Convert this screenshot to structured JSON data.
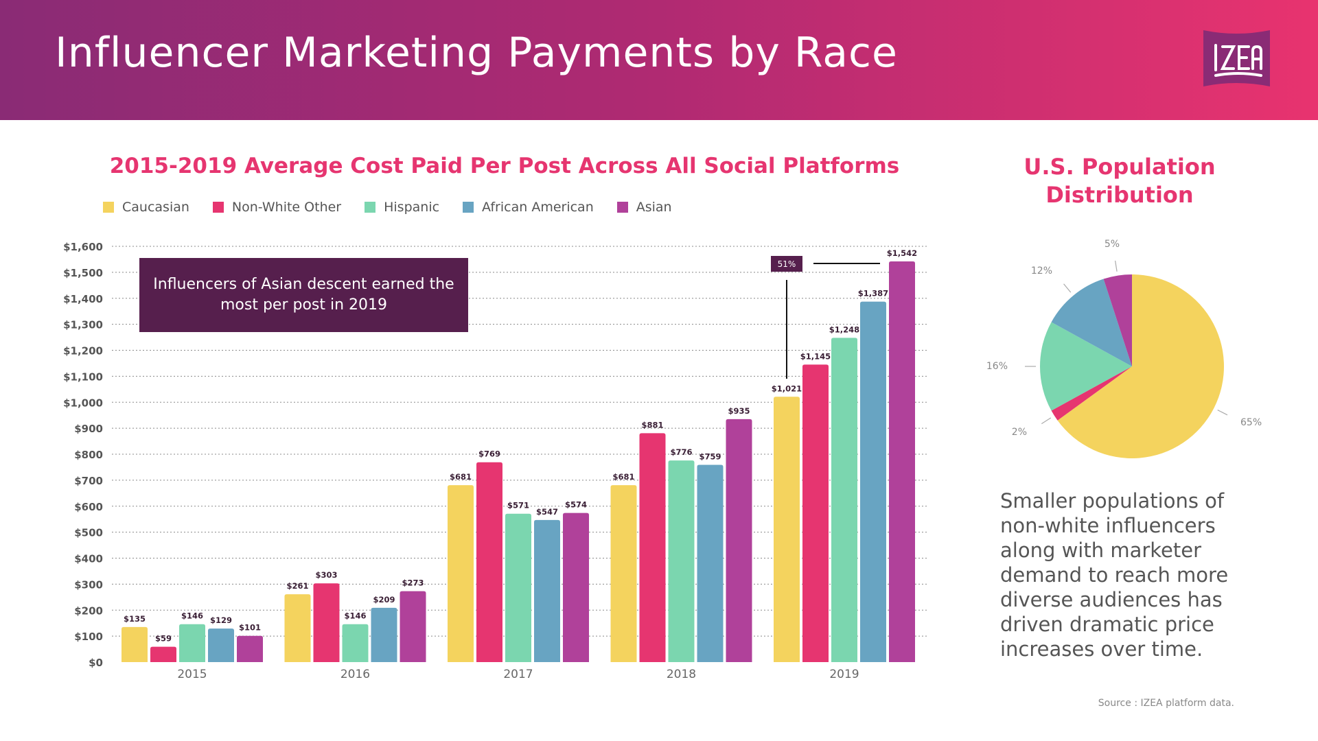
{
  "header": {
    "title": "Influencer Marketing Payments by Race",
    "logo_text": "IZEA"
  },
  "colors": {
    "Caucasian": "#f4d35e",
    "Non-White Other": "#e63570",
    "Hispanic": "#7bd6af",
    "African American": "#68a4c2",
    "Asian": "#b0419a",
    "accent": "#e63570",
    "note_bg": "#561f4d"
  },
  "chart_data": [
    {
      "type": "bar",
      "title": "2015-2019 Average Cost Paid Per Post Across All Social Platforms",
      "categories": [
        "2015",
        "2016",
        "2017",
        "2018",
        "2019"
      ],
      "series": [
        {
          "name": "Caucasian",
          "values": [
            135,
            261,
            681,
            681,
            1021
          ]
        },
        {
          "name": "Non-White Other",
          "values": [
            59,
            303,
            769,
            881,
            1145
          ]
        },
        {
          "name": "Hispanic",
          "values": [
            146,
            146,
            571,
            776,
            1248
          ]
        },
        {
          "name": "African American",
          "values": [
            129,
            209,
            547,
            759,
            1387
          ]
        },
        {
          "name": "Asian",
          "values": [
            101,
            273,
            574,
            935,
            1542
          ]
        }
      ],
      "ylim": [
        0,
        1600
      ],
      "yticks": [
        "$0",
        "$100",
        "$200",
        "$300",
        "$400",
        "$500",
        "$600",
        "$700",
        "$800",
        "$900",
        "$1,000",
        "$1,100",
        "$1,200",
        "$1,300",
        "$1,400",
        "$1,500",
        "$1,600"
      ],
      "data_labels": [
        [
          "$135",
          "$261",
          "$681",
          "$681",
          "$1,021"
        ],
        [
          "$59",
          "$303",
          "$769",
          "$881",
          "$1,145"
        ],
        [
          "$146",
          "$146",
          "$571",
          "$776",
          "$1,248"
        ],
        [
          "$129",
          "$209",
          "$547",
          "$759",
          "$1,387"
        ],
        [
          "$101",
          "$273",
          "$574",
          "$935",
          "$1,542"
        ]
      ],
      "grid": true,
      "legend": "top-left",
      "annotations": {
        "note": "Influencers of Asian descent earned the most per post in 2019",
        "increase": "51%"
      }
    },
    {
      "type": "pie",
      "title": "U.S. Population Distribution",
      "labels": [
        "Caucasian",
        "Non-White Other",
        "Hispanic",
        "African American",
        "Asian"
      ],
      "values": [
        65,
        2,
        16,
        12,
        5
      ],
      "value_labels": [
        "65%",
        "2%",
        "16%",
        "12%",
        "5%"
      ]
    }
  ],
  "paragraph": "Smaller populations of non-white influencers along with marketer demand to reach more diverse audiences has driven dramatic price increases over time.",
  "source": "Source : IZEA platform data."
}
